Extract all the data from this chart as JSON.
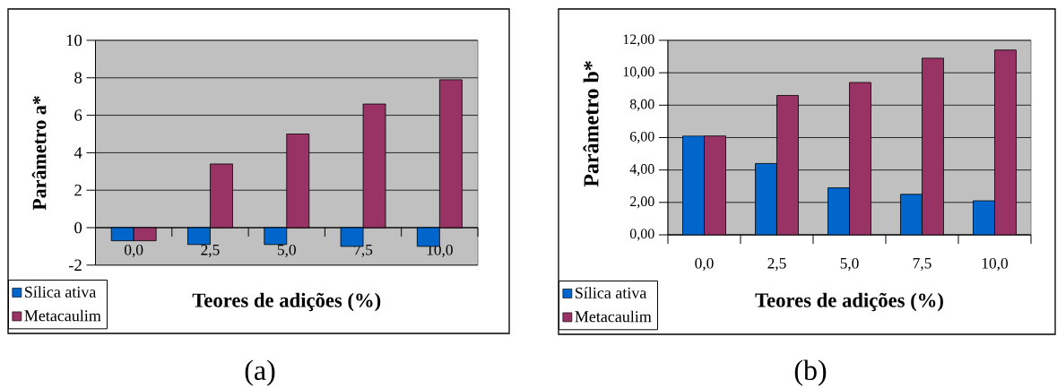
{
  "chart_data": [
    {
      "type": "bar",
      "categories": [
        "0,0",
        "2,5",
        "5,0",
        "7,5",
        "10,0"
      ],
      "xlabel": "Teores de adições (%)",
      "ylabel": "Parâmetro a*",
      "series": [
        {
          "name": "Sílica ativa",
          "color": "#0066cc",
          "values": [
            -0.7,
            -0.9,
            -0.9,
            -1.0,
            -1.0
          ]
        },
        {
          "name": "Metacaulim",
          "color": "#993366",
          "values": [
            -0.7,
            3.4,
            5.0,
            6.6,
            7.9
          ]
        }
      ],
      "ylim": [
        -2,
        10
      ],
      "yticks": [
        -2,
        0,
        2,
        4,
        6,
        8,
        10
      ],
      "grid": "y",
      "legend": "bottom left",
      "annotations": [
        "(a)"
      ]
    },
    {
      "type": "bar",
      "categories": [
        "0,0",
        "2,5",
        "5,0",
        "7,5",
        "10,0"
      ],
      "xlabel": "Teores de adições (%)",
      "ylabel": "Parâmetro b*",
      "series": [
        {
          "name": "Sílica ativa",
          "color": "#0066cc",
          "values": [
            6.1,
            4.4,
            2.9,
            2.5,
            2.1
          ]
        },
        {
          "name": "Metacaulim",
          "color": "#993366",
          "values": [
            6.1,
            8.6,
            9.4,
            10.9,
            11.4
          ]
        }
      ],
      "ylim": [
        0,
        12
      ],
      "yticks": [
        {
          "value": 0,
          "label": "0,00"
        },
        {
          "value": 2,
          "label": "2,00"
        },
        {
          "value": 4,
          "label": "4,00"
        },
        {
          "value": 6,
          "label": "6,00"
        },
        {
          "value": 8,
          "label": "8,00"
        },
        {
          "value": 10,
          "label": "10,00"
        },
        {
          "value": 12,
          "label": "12,00"
        }
      ],
      "grid": "y",
      "legend": "bottom left",
      "annotations": [
        "(b)"
      ]
    }
  ]
}
